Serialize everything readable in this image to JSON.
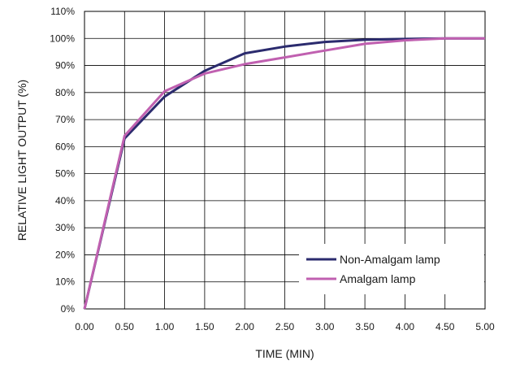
{
  "chart_data": {
    "type": "line",
    "title": "",
    "xlabel": "TIME (MIN)",
    "ylabel": "RELATIVE LIGHT OUTPUT (%)",
    "xlim": [
      0,
      5
    ],
    "ylim": [
      0,
      110
    ],
    "grid": true,
    "legend_position": "bottom-right",
    "x_ticks": [
      "0.00",
      "0.50",
      "1.00",
      "1.50",
      "2.00",
      "2.50",
      "3.00",
      "3.50",
      "4.00",
      "4.50",
      "5.00"
    ],
    "y_ticks": [
      "0%",
      "10%",
      "20%",
      "30%",
      "40%",
      "50%",
      "60%",
      "70%",
      "80%",
      "90%",
      "100%",
      "110%"
    ],
    "x": [
      0,
      0.5,
      1.0,
      1.5,
      2.0,
      2.5,
      3.0,
      3.5,
      4.0,
      4.5,
      5.0
    ],
    "series": [
      {
        "name": "Non-Amalgam lamp",
        "color": "#2b2b6e",
        "values": [
          0,
          63,
          78.5,
          88,
          94.5,
          97,
          98.7,
          99.5,
          99.8,
          100,
          100
        ]
      },
      {
        "name": "Amalgam lamp",
        "color": "#c060b0",
        "values": [
          0,
          64,
          80.5,
          87,
          90.5,
          93,
          95.5,
          98,
          99.3,
          100,
          100
        ]
      }
    ]
  }
}
